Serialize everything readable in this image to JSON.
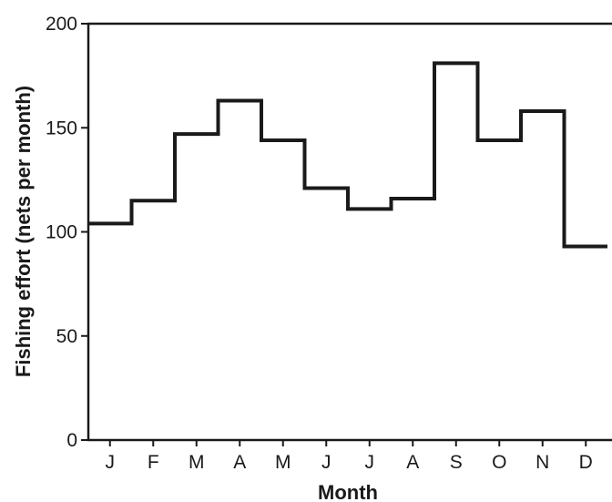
{
  "chart_data": {
    "type": "line",
    "step": true,
    "xlabel": "Month",
    "ylabel": "Fishing effort (nets per month)",
    "categories": [
      "J",
      "F",
      "M",
      "A",
      "M",
      "J",
      "J",
      "A",
      "S",
      "O",
      "N",
      "D"
    ],
    "series": [
      {
        "values": [
          104,
          115,
          147,
          163,
          144,
          121,
          111,
          116,
          181,
          144,
          158,
          93
        ]
      }
    ],
    "ylim": [
      0,
      200
    ],
    "yticks": [
      0,
      50,
      100,
      150,
      200
    ],
    "grid": false,
    "legend": false
  }
}
